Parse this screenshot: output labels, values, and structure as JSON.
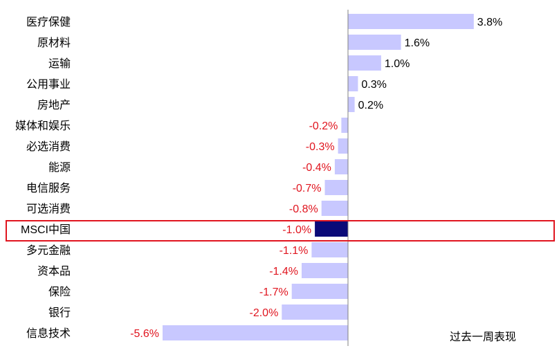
{
  "chart_data": {
    "type": "bar",
    "orientation": "horizontal",
    "categories": [
      "医疗保健",
      "原材料",
      "运输",
      "公用事业",
      "房地产",
      "媒体和娱乐",
      "必选消费",
      "能源",
      "电信服务",
      "可选消费",
      "MSCI中国",
      "多元金融",
      "资本品",
      "保险",
      "银行",
      "信息技术"
    ],
    "values": [
      3.8,
      1.6,
      1.0,
      0.3,
      0.2,
      -0.2,
      -0.3,
      -0.4,
      -0.7,
      -0.8,
      -1.0,
      -1.1,
      -1.4,
      -1.7,
      -2.0,
      -5.6
    ],
    "value_labels": [
      "3.8%",
      "1.6%",
      "1.0%",
      "0.3%",
      "0.2%",
      "-0.2%",
      "-0.3%",
      "-0.4%",
      "-0.7%",
      "-0.8%",
      "-1.0%",
      "-1.1%",
      "-1.4%",
      "-1.7%",
      "-2.0%",
      "-5.6%"
    ],
    "series": [
      {
        "name": "过去一周表现",
        "values": [
          3.8,
          1.6,
          1.0,
          0.3,
          0.2,
          -0.2,
          -0.3,
          -0.4,
          -0.7,
          -0.8,
          -1.0,
          -1.1,
          -1.4,
          -1.7,
          -2.0,
          -5.6
        ]
      }
    ],
    "legend": {
      "text": "过去一周表现",
      "placement": "bottom-right"
    },
    "highlight": {
      "category": "MSCI中国",
      "color": "#0a0a78",
      "box_color": "#e0141e"
    },
    "colors": {
      "bar": "#c8c8ff",
      "negative_label": "#e0141e",
      "positive_label": "#000000",
      "axis": "#808080"
    },
    "title": "",
    "xlabel": "",
    "ylabel": ""
  }
}
